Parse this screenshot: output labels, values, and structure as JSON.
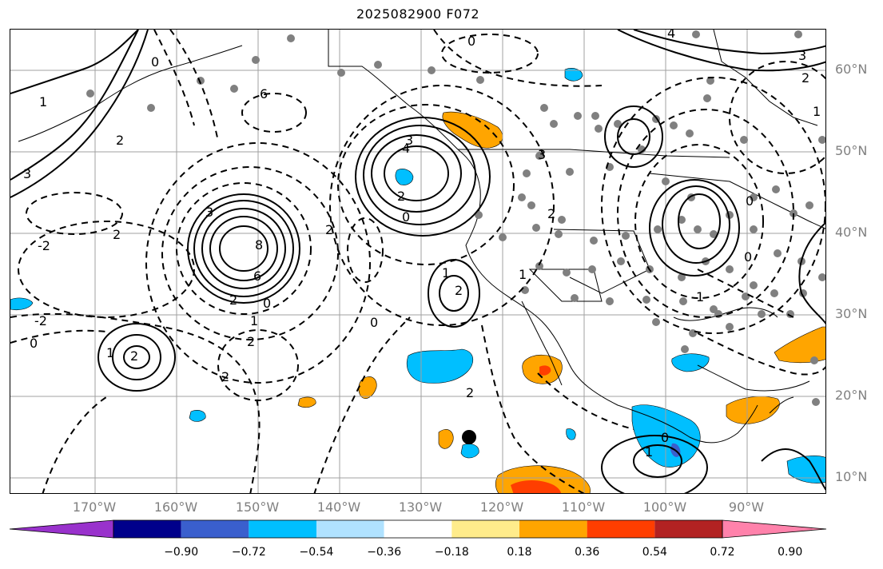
{
  "title": "2025082900 F072",
  "lat_labels": [
    "60°N",
    "50°N",
    "40°N",
    "30°N",
    "20°N",
    "10°N"
  ],
  "lon_labels": [
    "170°W",
    "160°W",
    "150°W",
    "140°W",
    "130°W",
    "120°W",
    "110°W",
    "100°W",
    "90°W"
  ],
  "colorbar": {
    "ticks": [
      "−0.90",
      "−0.72",
      "−0.54",
      "−0.36",
      "−0.18",
      "0.18",
      "0.36",
      "0.54",
      "0.72",
      "0.90"
    ],
    "colors": [
      "#9932cc",
      "#00008b",
      "#3a5fcd",
      "#00bfff",
      "#b0e2ff",
      "#ffffff",
      "#ffec8b",
      "#ffa500",
      "#ff3e00",
      "#b22222",
      "#ff82ab"
    ]
  },
  "shading_colors": {
    "neg_light": "#00bfff",
    "neg_mid": "#3a5fcd",
    "pos_light": "#ffa500",
    "pos_mid": "#ff3e00",
    "pos_pale": "#ffec8b"
  },
  "contour_labels": [
    "8",
    "6",
    "3",
    "2",
    "1",
    "0",
    "2",
    "1",
    "0",
    "-2",
    "-2",
    "2",
    "2",
    "2",
    "6",
    "4",
    "3",
    "2",
    "1",
    "0",
    "2",
    "0",
    "1",
    "2",
    "3",
    "4",
    "0",
    "1",
    "2",
    "3",
    "3",
    "2",
    "1",
    "0",
    "0",
    "1",
    "2",
    "0",
    "0",
    "2",
    "1"
  ],
  "station_marker": "black-dot"
}
